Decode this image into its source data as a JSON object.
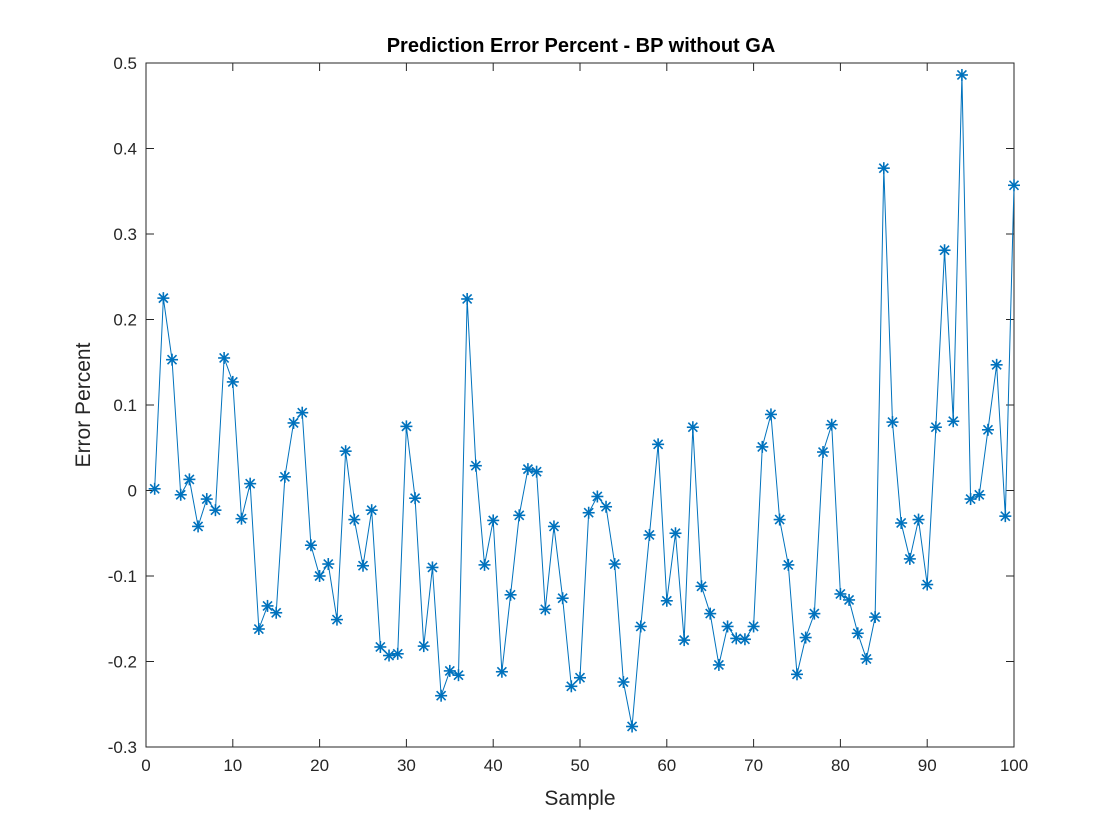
{
  "chart_data": {
    "type": "line",
    "title": "Prediction Error Percent - BP without GA",
    "xlabel": "Sample",
    "ylabel": "Error Percent",
    "xlim": [
      0,
      100
    ],
    "ylim": [
      -0.3,
      0.5
    ],
    "xticks": [
      0,
      10,
      20,
      30,
      40,
      50,
      60,
      70,
      80,
      90,
      100
    ],
    "yticks": [
      -0.3,
      -0.2,
      -0.1,
      0,
      0.1,
      0.2,
      0.3,
      0.4,
      0.5
    ],
    "xtick_labels": [
      "0",
      "10",
      "20",
      "30",
      "40",
      "50",
      "60",
      "70",
      "80",
      "90",
      "100"
    ],
    "ytick_labels": [
      "-0.3",
      "-0.2",
      "-0.1",
      "0",
      "0.1",
      "0.2",
      "0.3",
      "0.4",
      "0.5"
    ],
    "grid": false,
    "marker": "asterisk",
    "color": "#0072BD",
    "series": [
      {
        "x": [
          1,
          2,
          3,
          4,
          5,
          6,
          7,
          8,
          9,
          10,
          11,
          12,
          13,
          14,
          15,
          16,
          17,
          18,
          19,
          20,
          21,
          22,
          23,
          24,
          25,
          26,
          27,
          28,
          29,
          30,
          31,
          32,
          33,
          34,
          35,
          36,
          37,
          38,
          39,
          40,
          41,
          42,
          43,
          44,
          45,
          46,
          47,
          48,
          49,
          50,
          51,
          52,
          53,
          54,
          55,
          56,
          57,
          58,
          59,
          60,
          61,
          62,
          63,
          64,
          65,
          66,
          67,
          68,
          69,
          70,
          71,
          72,
          73,
          74,
          75,
          76,
          77,
          78,
          79,
          80,
          81,
          82,
          83,
          84,
          85,
          86,
          87,
          88,
          89,
          90,
          91,
          92,
          93,
          94,
          95,
          96,
          97,
          98,
          99,
          100
        ],
        "y": [
          0.002,
          0.225,
          0.153,
          -0.005,
          0.013,
          -0.042,
          -0.01,
          -0.023,
          0.155,
          0.127,
          -0.033,
          0.008,
          -0.162,
          -0.135,
          -0.143,
          0.016,
          0.079,
          0.091,
          -0.064,
          -0.1,
          -0.086,
          -0.151,
          0.046,
          -0.034,
          -0.088,
          -0.023,
          -0.183,
          -0.193,
          -0.191,
          0.075,
          -0.009,
          -0.182,
          -0.09,
          -0.24,
          -0.211,
          -0.216,
          0.224,
          0.029,
          -0.087,
          -0.035,
          -0.212,
          -0.122,
          -0.029,
          0.025,
          0.022,
          -0.139,
          -0.042,
          -0.126,
          -0.229,
          -0.219,
          -0.026,
          -0.007,
          -0.019,
          -0.086,
          -0.224,
          -0.276,
          -0.159,
          -0.052,
          0.054,
          -0.129,
          -0.05,
          -0.175,
          0.074,
          -0.112,
          -0.144,
          -0.204,
          -0.159,
          -0.173,
          -0.174,
          -0.159,
          0.051,
          0.089,
          -0.034,
          -0.087,
          -0.215,
          -0.172,
          -0.144,
          0.045,
          0.077,
          -0.121,
          -0.128,
          -0.167,
          -0.197,
          -0.148,
          0.377,
          0.08,
          -0.038,
          -0.08,
          -0.034,
          -0.11,
          0.074,
          0.281,
          0.081,
          0.486,
          -0.01,
          -0.005,
          0.071,
          0.147,
          -0.03,
          0.357
        ]
      }
    ]
  }
}
